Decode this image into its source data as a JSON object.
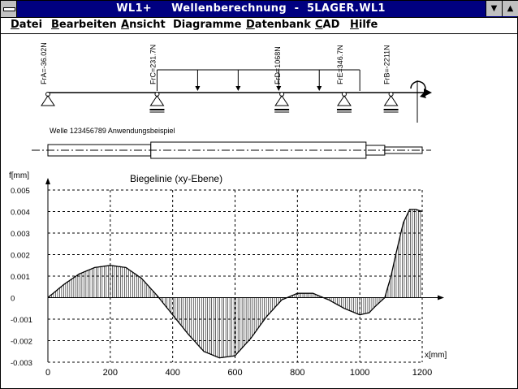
{
  "window": {
    "title": "WL1+     Wellenberechnung  -  5LAGER.WL1"
  },
  "menu": [
    {
      "label": "Datei",
      "key": "D",
      "rest": "atei"
    },
    {
      "label": "Bearbeiten",
      "key": "B",
      "rest": "earbeiten"
    },
    {
      "label": "Ansicht",
      "key": "A",
      "rest": "nsicht"
    },
    {
      "label": "Diagramme",
      "key": "",
      "rest": "Diagramme"
    },
    {
      "label": "Datenbank",
      "key": "D",
      "rest": "atenbank"
    },
    {
      "label": "CAD",
      "key": "C",
      "rest": "AD"
    },
    {
      "label": "Hilfe",
      "key": "H",
      "rest": "ilfe"
    }
  ],
  "loads": {
    "bearings": [
      "FrA=-36.02N",
      "FrC=231.7N",
      "FrD=1068N",
      "FrE=346.7N",
      "FrB=-2211N"
    ],
    "bearing_x_mm": [
      0,
      350,
      750,
      950,
      1100
    ],
    "distributed_load_x_mm": [
      350,
      1000
    ]
  },
  "shaft": {
    "label": "Welle 123456789  Anwendungsbeispiel",
    "segments_mm": [
      [
        0,
        330
      ],
      [
        330,
        1020
      ],
      [
        1020,
        1080
      ],
      [
        1080,
        1200
      ]
    ]
  },
  "chart_data": {
    "type": "area",
    "title": "Biegelinie (xy-Ebene)",
    "ylabel": "f[mm]",
    "xlabel": "x[mm]",
    "xlim": [
      0,
      1200
    ],
    "ylim": [
      -0.003,
      0.005
    ],
    "xticks": [
      0,
      200,
      400,
      600,
      800,
      1000,
      1200
    ],
    "yticks": [
      0.005,
      0.004,
      0.003,
      0.002,
      0.001,
      0,
      -0.001,
      -0.002,
      -0.003
    ],
    "ytick_labels": [
      "0.005",
      "0.004",
      "0.003",
      "0.002",
      "0.001",
      "0",
      "-0.001",
      "-0.002",
      "-0.003"
    ],
    "grid": true,
    "x": [
      0,
      50,
      100,
      150,
      200,
      250,
      300,
      350,
      400,
      450,
      500,
      550,
      600,
      650,
      700,
      750,
      800,
      850,
      900,
      950,
      1000,
      1030,
      1050,
      1080,
      1100,
      1120,
      1140,
      1160,
      1180,
      1200
    ],
    "y": [
      0,
      0.0006,
      0.0011,
      0.0014,
      0.0015,
      0.0014,
      0.0009,
      0.0001,
      -0.0008,
      -0.0017,
      -0.0025,
      -0.0028,
      -0.0027,
      -0.0019,
      -0.0009,
      -0.0001,
      0.0002,
      0.0002,
      -0.0001,
      -0.0005,
      -0.0008,
      -0.0007,
      -0.0004,
      0.0,
      0.001,
      0.0023,
      0.0035,
      0.0041,
      0.0041,
      0.004
    ]
  }
}
